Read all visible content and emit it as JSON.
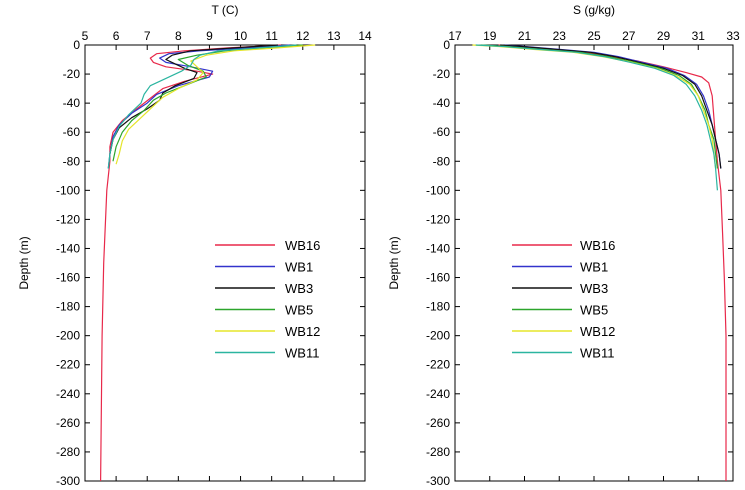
{
  "chart_data": [
    {
      "type": "line",
      "title": "T (C)",
      "xlabel": "T (C)",
      "ylabel": "Depth (m)",
      "xlim": [
        5,
        14
      ],
      "ylim": [
        -300,
        0
      ],
      "x_ticks": [
        "5",
        "6",
        "7",
        "8",
        "9",
        "10",
        "11",
        "12",
        "13",
        "14"
      ],
      "y_ticks": [
        "0",
        "-20",
        "-40",
        "-60",
        "-80",
        "-100",
        "-120",
        "-140",
        "-160",
        "-180",
        "-200",
        "-220",
        "-240",
        "-260",
        "-280",
        "-300"
      ],
      "legend_position": "center-right",
      "series": [
        {
          "name": "WB16",
          "color": "#e8294a",
          "points": [
            [
              11.3,
              0
            ],
            [
              9.6,
              -2
            ],
            [
              8.2,
              -4
            ],
            [
              7.3,
              -6
            ],
            [
              7.1,
              -9
            ],
            [
              7.2,
              -12
            ],
            [
              7.6,
              -15
            ],
            [
              8.6,
              -18
            ],
            [
              9.1,
              -20
            ],
            [
              8.2,
              -25
            ],
            [
              7.5,
              -30
            ],
            [
              7.2,
              -35
            ],
            [
              6.9,
              -40
            ],
            [
              6.6,
              -45
            ],
            [
              6.2,
              -52
            ],
            [
              5.9,
              -60
            ],
            [
              5.8,
              -70
            ],
            [
              5.8,
              -80
            ],
            [
              5.7,
              -100
            ],
            [
              5.6,
              -150
            ],
            [
              5.55,
              -200
            ],
            [
              5.5,
              -300
            ]
          ]
        },
        {
          "name": "WB1",
          "color": "#3333cc",
          "points": [
            [
              11.6,
              0
            ],
            [
              10.3,
              -2
            ],
            [
              8.7,
              -4
            ],
            [
              7.7,
              -6
            ],
            [
              7.4,
              -9
            ],
            [
              7.6,
              -12
            ],
            [
              8.4,
              -15
            ],
            [
              9.1,
              -18
            ],
            [
              9.0,
              -22
            ],
            [
              8.0,
              -28
            ],
            [
              7.3,
              -34
            ],
            [
              7.0,
              -40
            ],
            [
              6.5,
              -47
            ],
            [
              6.1,
              -55
            ],
            [
              5.9,
              -63
            ],
            [
              5.8,
              -75
            ],
            [
              5.75,
              -85
            ]
          ]
        },
        {
          "name": "WB3",
          "color": "#111111",
          "points": [
            [
              11.2,
              0
            ],
            [
              9.8,
              -2
            ],
            [
              8.4,
              -4
            ],
            [
              7.8,
              -7
            ],
            [
              7.6,
              -10
            ],
            [
              7.9,
              -13
            ],
            [
              8.2,
              -16
            ],
            [
              8.6,
              -19
            ],
            [
              8.5,
              -23
            ],
            [
              7.9,
              -28
            ],
            [
              7.5,
              -33
            ],
            [
              7.4,
              -38
            ],
            [
              7.0,
              -44
            ],
            [
              6.5,
              -50
            ],
            [
              6.1,
              -57
            ],
            [
              5.9,
              -65
            ],
            [
              5.8,
              -75
            ]
          ]
        },
        {
          "name": "WB5",
          "color": "#2ca52c",
          "points": [
            [
              12.0,
              0
            ],
            [
              10.9,
              -2
            ],
            [
              9.5,
              -4
            ],
            [
              8.6,
              -7
            ],
            [
              8.0,
              -10
            ],
            [
              8.3,
              -14
            ],
            [
              8.8,
              -18
            ],
            [
              8.9,
              -22
            ],
            [
              8.2,
              -28
            ],
            [
              7.6,
              -33
            ],
            [
              7.2,
              -38
            ],
            [
              6.9,
              -45
            ],
            [
              6.5,
              -52
            ],
            [
              6.2,
              -60
            ],
            [
              6.0,
              -70
            ],
            [
              5.9,
              -80
            ]
          ]
        },
        {
          "name": "WB12",
          "color": "#e5e52a",
          "points": [
            [
              12.4,
              0
            ],
            [
              11.2,
              -2
            ],
            [
              9.8,
              -4
            ],
            [
              8.9,
              -7
            ],
            [
              8.4,
              -11
            ],
            [
              8.6,
              -15
            ],
            [
              8.8,
              -19
            ],
            [
              8.6,
              -24
            ],
            [
              8.0,
              -30
            ],
            [
              7.5,
              -36
            ],
            [
              7.2,
              -42
            ],
            [
              6.8,
              -50
            ],
            [
              6.4,
              -58
            ],
            [
              6.2,
              -66
            ],
            [
              6.1,
              -75
            ],
            [
              6.0,
              -82
            ]
          ]
        },
        {
          "name": "WB11",
          "color": "#2bb5a0",
          "points": [
            [
              11.8,
              0
            ],
            [
              10.6,
              -2
            ],
            [
              9.3,
              -4
            ],
            [
              8.7,
              -7
            ],
            [
              8.5,
              -10
            ],
            [
              8.4,
              -14
            ],
            [
              8.1,
              -18
            ],
            [
              7.6,
              -23
            ],
            [
              7.1,
              -28
            ],
            [
              6.9,
              -34
            ],
            [
              6.8,
              -40
            ],
            [
              6.4,
              -48
            ],
            [
              6.1,
              -56
            ],
            [
              5.9,
              -65
            ],
            [
              5.8,
              -75
            ],
            [
              5.75,
              -85
            ]
          ]
        }
      ]
    },
    {
      "type": "line",
      "title": "S (g/kg)",
      "xlabel": "S (g/kg)",
      "ylabel": "Depth (m)",
      "xlim": [
        17,
        33
      ],
      "ylim": [
        -300,
        0
      ],
      "x_ticks": [
        "17",
        "19",
        "21",
        "23",
        "25",
        "27",
        "29",
        "31",
        "33"
      ],
      "y_ticks": [
        "0",
        "-20",
        "-40",
        "-60",
        "-80",
        "-100",
        "-120",
        "-140",
        "-160",
        "-180",
        "-200",
        "-220",
        "-240",
        "-260",
        "-280",
        "-300"
      ],
      "legend_position": "center-left",
      "series": [
        {
          "name": "WB16",
          "color": "#e8294a",
          "points": [
            [
              19.5,
              0
            ],
            [
              20.5,
              -1
            ],
            [
              22.5,
              -3
            ],
            [
              24.5,
              -5
            ],
            [
              26.0,
              -8
            ],
            [
              27.5,
              -11
            ],
            [
              29.0,
              -15
            ],
            [
              30.3,
              -19
            ],
            [
              31.2,
              -22
            ],
            [
              31.6,
              -26
            ],
            [
              31.8,
              -35
            ],
            [
              31.9,
              -50
            ],
            [
              32.0,
              -65
            ],
            [
              32.1,
              -80
            ],
            [
              32.3,
              -100
            ],
            [
              32.4,
              -130
            ],
            [
              32.5,
              -160
            ],
            [
              32.6,
              -200
            ],
            [
              32.6,
              -300
            ]
          ]
        },
        {
          "name": "WB1",
          "color": "#3333cc",
          "points": [
            [
              19.8,
              0
            ],
            [
              21.0,
              -1
            ],
            [
              23.0,
              -3
            ],
            [
              25.0,
              -5
            ],
            [
              26.4,
              -8
            ],
            [
              27.8,
              -12
            ],
            [
              29.2,
              -16
            ],
            [
              30.2,
              -21
            ],
            [
              30.9,
              -27
            ],
            [
              31.3,
              -35
            ],
            [
              31.6,
              -45
            ],
            [
              31.8,
              -55
            ],
            [
              32.0,
              -65
            ],
            [
              32.2,
              -75
            ],
            [
              32.3,
              -85
            ]
          ]
        },
        {
          "name": "WB3",
          "color": "#111111",
          "points": [
            [
              19.6,
              0
            ],
            [
              20.8,
              -1
            ],
            [
              22.8,
              -3
            ],
            [
              24.8,
              -5
            ],
            [
              26.2,
              -8
            ],
            [
              27.6,
              -12
            ],
            [
              29.0,
              -16
            ],
            [
              30.1,
              -21
            ],
            [
              30.8,
              -27
            ],
            [
              31.2,
              -35
            ],
            [
              31.5,
              -45
            ],
            [
              31.8,
              -55
            ],
            [
              32.0,
              -65
            ],
            [
              32.2,
              -75
            ],
            [
              32.3,
              -85
            ]
          ]
        },
        {
          "name": "WB5",
          "color": "#2ca52c",
          "points": [
            [
              18.5,
              0
            ],
            [
              20.0,
              -1
            ],
            [
              22.0,
              -3
            ],
            [
              24.2,
              -5
            ],
            [
              25.8,
              -8
            ],
            [
              27.4,
              -12
            ],
            [
              28.8,
              -16
            ],
            [
              29.9,
              -21
            ],
            [
              30.6,
              -27
            ],
            [
              31.0,
              -35
            ],
            [
              31.4,
              -45
            ],
            [
              31.6,
              -55
            ],
            [
              31.9,
              -65
            ],
            [
              32.0,
              -75
            ],
            [
              32.1,
              -85
            ]
          ]
        },
        {
          "name": "WB12",
          "color": "#e5e52a",
          "points": [
            [
              18.0,
              0
            ],
            [
              19.5,
              -1
            ],
            [
              21.5,
              -3
            ],
            [
              23.8,
              -5
            ],
            [
              25.5,
              -8
            ],
            [
              27.2,
              -12
            ],
            [
              28.6,
              -16
            ],
            [
              29.7,
              -21
            ],
            [
              30.5,
              -27
            ],
            [
              31.0,
              -35
            ],
            [
              31.3,
              -45
            ],
            [
              31.6,
              -55
            ],
            [
              31.8,
              -65
            ],
            [
              31.9,
              -75
            ],
            [
              32.0,
              -85
            ]
          ]
        },
        {
          "name": "WB11",
          "color": "#2bb5a0",
          "points": [
            [
              18.2,
              0
            ],
            [
              19.8,
              -1
            ],
            [
              21.8,
              -3
            ],
            [
              24.0,
              -5
            ],
            [
              25.6,
              -8
            ],
            [
              27.1,
              -12
            ],
            [
              28.5,
              -16
            ],
            [
              29.6,
              -21
            ],
            [
              30.3,
              -27
            ],
            [
              30.8,
              -35
            ],
            [
              31.2,
              -45
            ],
            [
              31.5,
              -55
            ],
            [
              31.7,
              -65
            ],
            [
              31.9,
              -75
            ],
            [
              32.0,
              -85
            ],
            [
              32.1,
              -100
            ]
          ]
        }
      ]
    }
  ]
}
